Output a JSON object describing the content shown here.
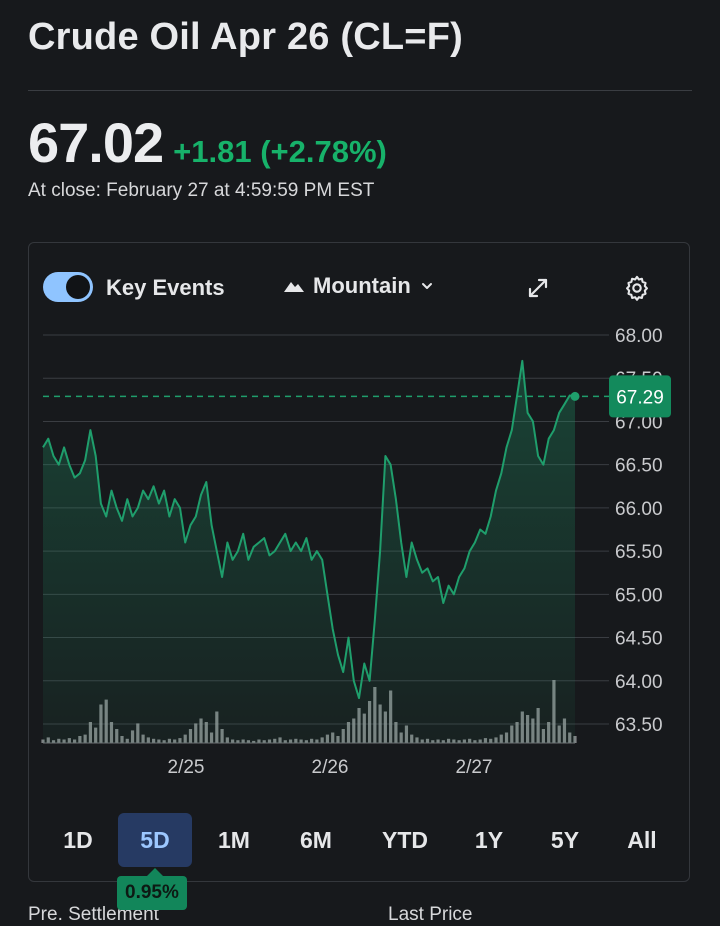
{
  "header": {
    "title": "Crude Oil Apr 26 (CL=F)",
    "price": "67.02",
    "change": "+1.81 (+2.78%)",
    "close_text": "At close: February 27 at 4:59:59 PM EST"
  },
  "toolbar": {
    "key_events_label": "Key Events",
    "chart_type_label": "Mountain"
  },
  "ranges": [
    "1D",
    "5D",
    "1M",
    "6M",
    "YTD",
    "1Y",
    "5Y",
    "All"
  ],
  "selected_range": "5D",
  "performance_badge": "0.95%",
  "bottom_labels": [
    "Pre. Settlement",
    "Last Price"
  ],
  "colors": {
    "up": "#17b26a",
    "line": "#1f9e6c",
    "accent": "#8fc4ff",
    "selected_range_bg": "#263a63"
  },
  "chart_data": {
    "type": "area",
    "y_ticks": [
      "68.00",
      "67.50",
      "67.00",
      "66.50",
      "66.00",
      "65.50",
      "65.00",
      "64.50",
      "64.00",
      "63.50"
    ],
    "x_ticks": [
      "2/25",
      "2/26",
      "2/27"
    ],
    "ylim": [
      63.3,
      68.2
    ],
    "current_price_label": "67.29",
    "current_price": 67.29,
    "series": [
      {
        "values": [
          66.7,
          66.8,
          66.6,
          66.5,
          66.7,
          66.5,
          66.35,
          66.4,
          66.55,
          66.9,
          66.6,
          66.05,
          65.9,
          66.2,
          66.0,
          65.85,
          66.1,
          65.9,
          66.0,
          66.2,
          66.1,
          66.25,
          66.05,
          66.2,
          65.9,
          66.1,
          66.0,
          65.6,
          65.8,
          65.9,
          66.15,
          66.3,
          65.8,
          65.5,
          65.2,
          65.6,
          65.4,
          65.5,
          65.7,
          65.4,
          65.55,
          65.6,
          65.65,
          65.45,
          65.5,
          65.6,
          65.7,
          65.5,
          65.6,
          65.5,
          65.65,
          65.4,
          65.5,
          65.4,
          65.0,
          64.6,
          64.3,
          64.1,
          64.5,
          64.0,
          63.8,
          64.2,
          64.0,
          64.7,
          65.5,
          66.6,
          66.5,
          66.1,
          65.6,
          65.2,
          65.6,
          65.4,
          65.25,
          65.3,
          65.15,
          65.2,
          64.9,
          65.1,
          65.0,
          65.2,
          65.3,
          65.5,
          65.6,
          65.75,
          65.7,
          65.9,
          66.2,
          66.4,
          66.7,
          66.9,
          67.3,
          67.7,
          67.1,
          67.0,
          66.6,
          66.5,
          66.8,
          66.9,
          67.1,
          67.2,
          67.3,
          67.29
        ],
        "volumes": [
          0.05,
          0.08,
          0.04,
          0.06,
          0.05,
          0.07,
          0.05,
          0.1,
          0.12,
          0.3,
          0.22,
          0.55,
          0.62,
          0.3,
          0.2,
          0.1,
          0.06,
          0.18,
          0.28,
          0.12,
          0.08,
          0.06,
          0.05,
          0.04,
          0.06,
          0.05,
          0.07,
          0.12,
          0.2,
          0.28,
          0.35,
          0.3,
          0.15,
          0.45,
          0.2,
          0.08,
          0.05,
          0.04,
          0.05,
          0.04,
          0.03,
          0.05,
          0.04,
          0.05,
          0.06,
          0.08,
          0.04,
          0.05,
          0.06,
          0.05,
          0.04,
          0.06,
          0.05,
          0.08,
          0.12,
          0.15,
          0.1,
          0.2,
          0.3,
          0.35,
          0.5,
          0.42,
          0.6,
          0.8,
          0.55,
          0.45,
          0.75,
          0.3,
          0.15,
          0.25,
          0.12,
          0.08,
          0.05,
          0.06,
          0.04,
          0.05,
          0.04,
          0.06,
          0.05,
          0.04,
          0.05,
          0.06,
          0.04,
          0.05,
          0.07,
          0.06,
          0.08,
          0.12,
          0.15,
          0.25,
          0.3,
          0.45,
          0.4,
          0.35,
          0.5,
          0.2,
          0.3,
          0.9,
          0.25,
          0.35,
          0.15,
          0.1
        ]
      }
    ]
  }
}
